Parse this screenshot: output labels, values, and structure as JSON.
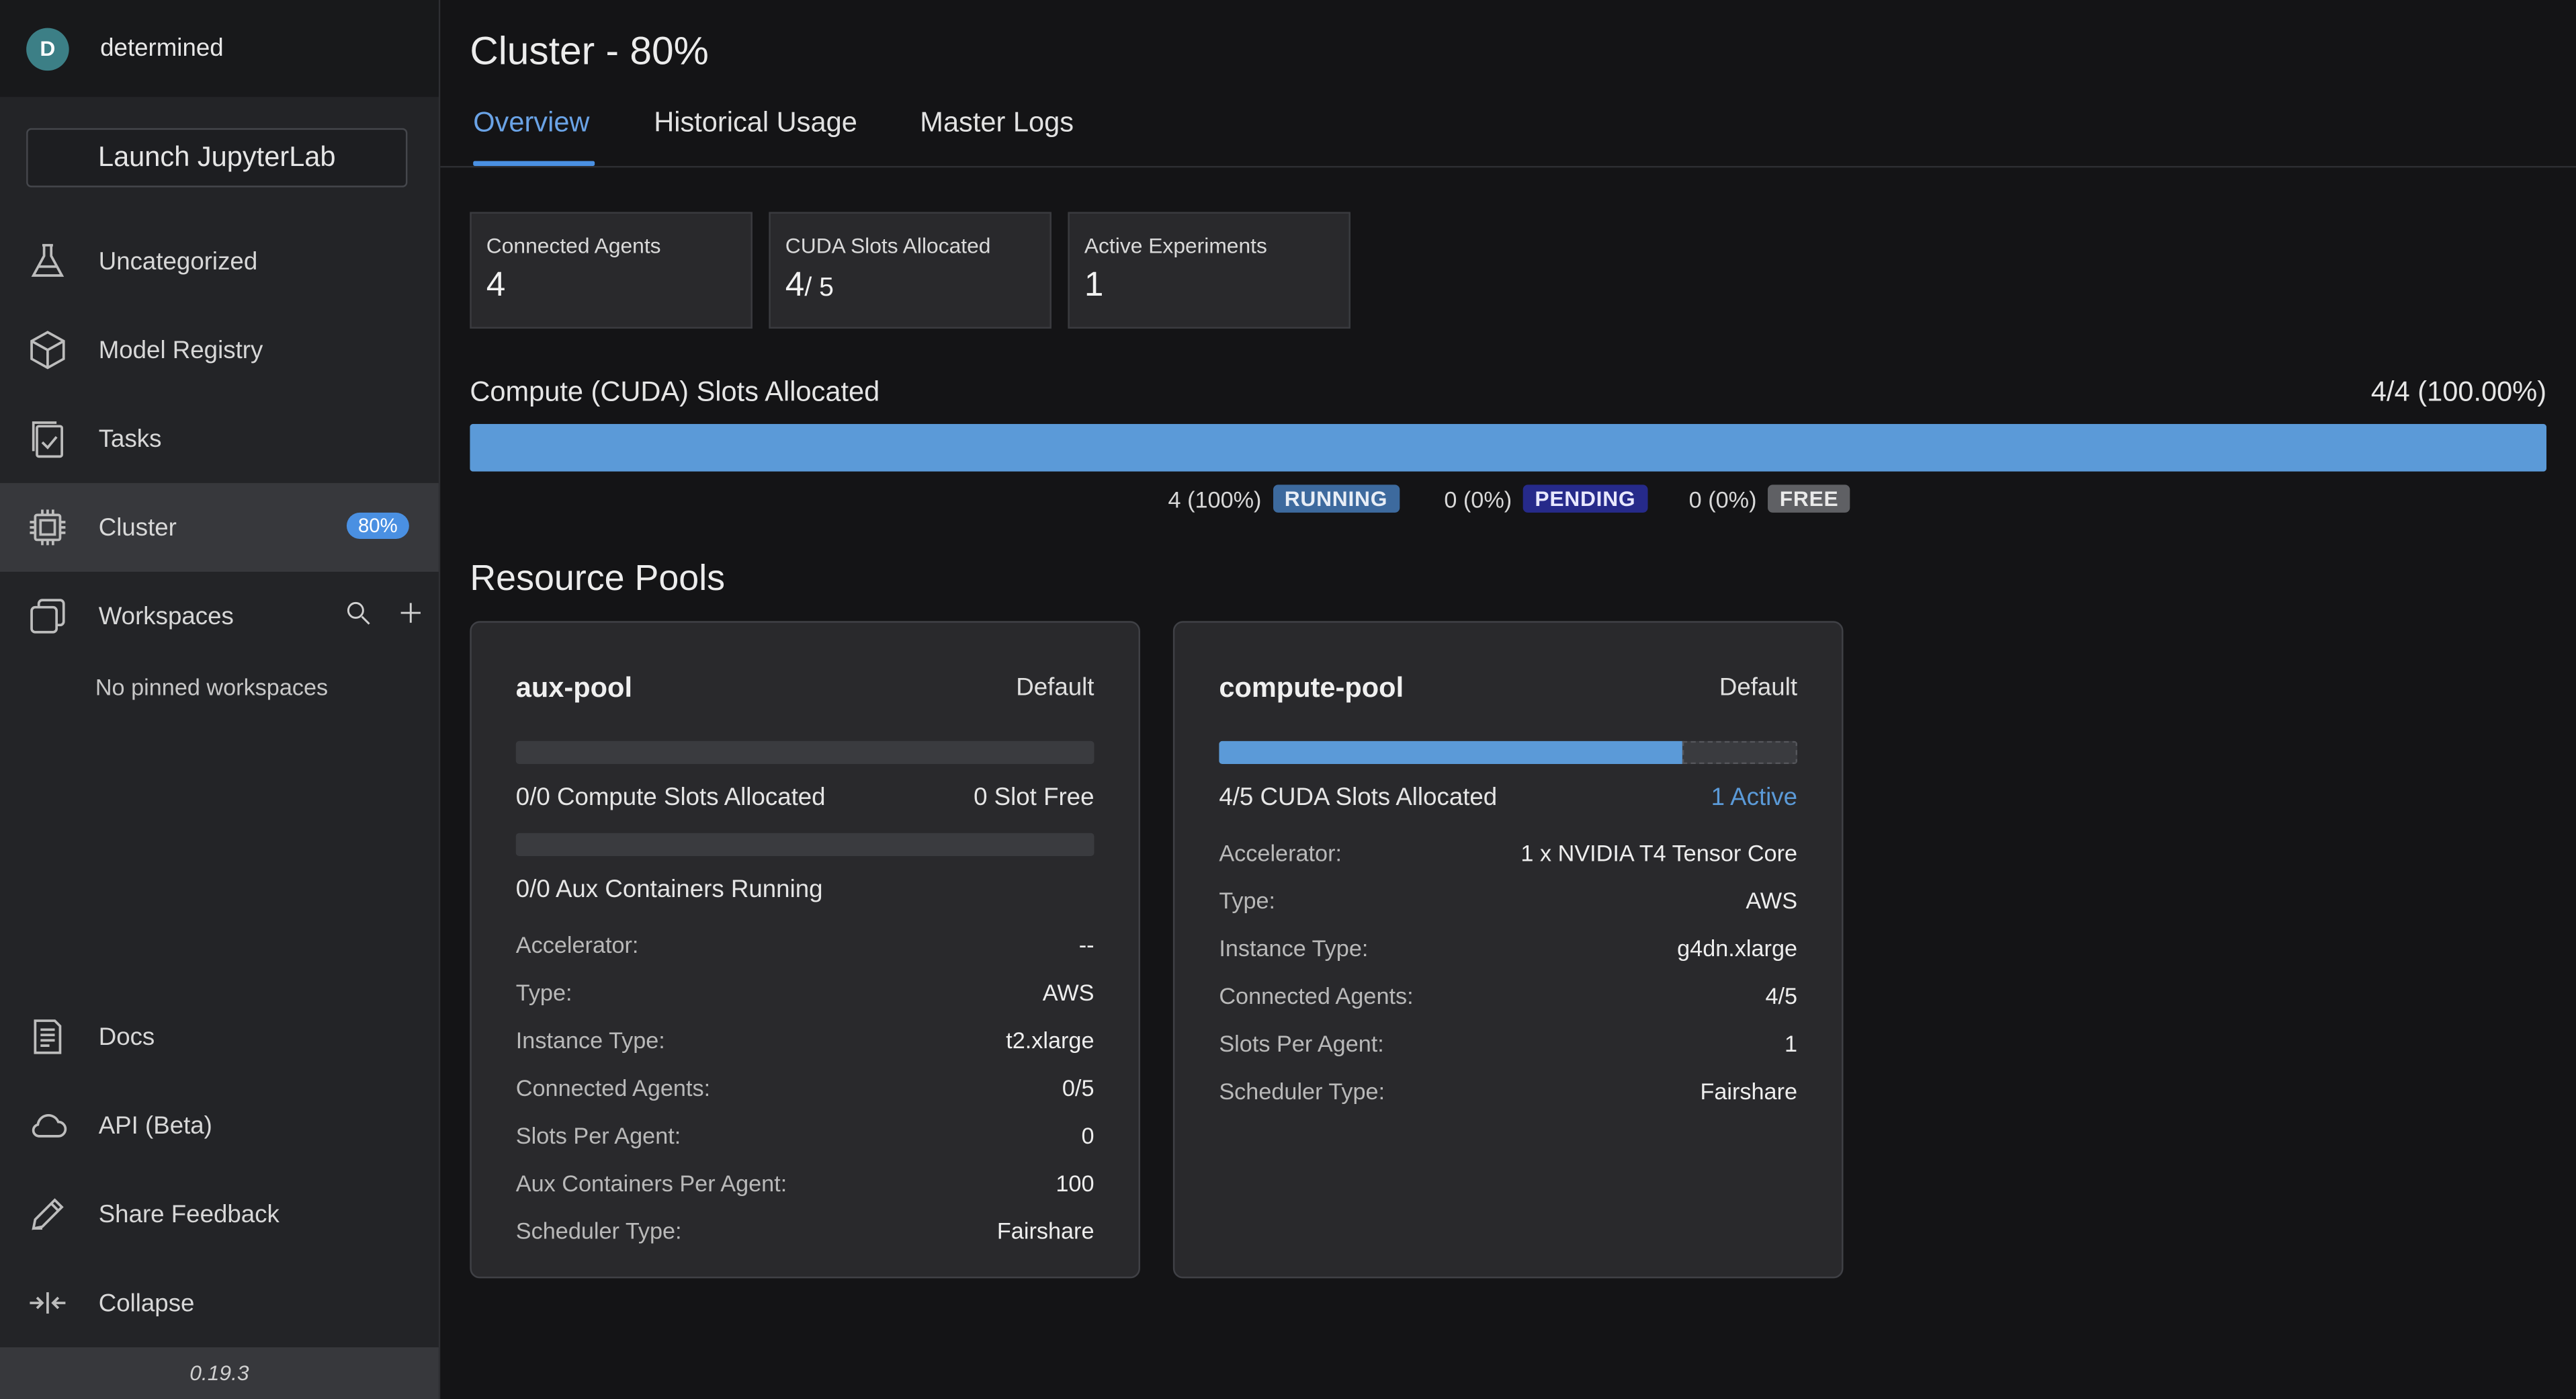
{
  "user": {
    "initial": "D",
    "name": "determined"
  },
  "sidebar": {
    "launch_label": "Launch JupyterLab",
    "items": [
      {
        "label": "Uncategorized",
        "icon": "flask-icon"
      },
      {
        "label": "Model Registry",
        "icon": "cube-icon"
      },
      {
        "label": "Tasks",
        "icon": "tasks-icon"
      },
      {
        "label": "Cluster",
        "icon": "chip-icon",
        "badge": "80%"
      },
      {
        "label": "Workspaces",
        "icon": "workspaces-icon"
      }
    ],
    "no_pinned": "No pinned workspaces",
    "bottom_items": [
      {
        "label": "Docs",
        "icon": "docs-icon"
      },
      {
        "label": "API (Beta)",
        "icon": "cloud-icon"
      },
      {
        "label": "Share Feedback",
        "icon": "pencil-icon"
      },
      {
        "label": "Collapse",
        "icon": "collapse-icon"
      }
    ],
    "version": "0.19.3"
  },
  "page": {
    "title": "Cluster - 80%",
    "tabs": [
      "Overview",
      "Historical Usage",
      "Master Logs"
    ],
    "active_tab": "Overview"
  },
  "cards": [
    {
      "label": "Connected Agents",
      "value": "4",
      "suffix": ""
    },
    {
      "label": "CUDA Slots Allocated",
      "value": "4",
      "suffix": "/ 5"
    },
    {
      "label": "Active Experiments",
      "value": "1",
      "suffix": ""
    }
  ],
  "allocation": {
    "title": "Compute (CUDA) Slots Allocated",
    "summary": "4/4 (100.00%)",
    "fill_fraction": 1.0,
    "legend": [
      {
        "count": "4 (100%)",
        "tag": "RUNNING"
      },
      {
        "count": "0 (0%)",
        "tag": "PENDING"
      },
      {
        "count": "0 (0%)",
        "tag": "FREE"
      }
    ]
  },
  "resource_pools_title": "Resource Pools",
  "pools": [
    {
      "name": "aux-pool",
      "default": "Default",
      "compute_fill": 0,
      "slots_label": "0/0 Compute Slots Allocated",
      "slots_right": "0 Slot Free",
      "aux_fill": 0,
      "aux_label": "0/0 Aux Containers Running",
      "rows": [
        {
          "k": "Accelerator:",
          "v": "--"
        },
        {
          "k": "Type:",
          "v": "AWS"
        },
        {
          "k": "Instance Type:",
          "v": "t2.xlarge"
        },
        {
          "k": "Connected Agents:",
          "v": "0/5"
        },
        {
          "k": "Slots Per Agent:",
          "v": "0"
        },
        {
          "k": "Aux Containers Per Agent:",
          "v": "100"
        },
        {
          "k": "Scheduler Type:",
          "v": "Fairshare"
        }
      ]
    },
    {
      "name": "compute-pool",
      "default": "Default",
      "compute_fill": 0.8,
      "slots_label": "4/5 CUDA Slots Allocated",
      "slots_right": "1 Active",
      "rows": [
        {
          "k": "Accelerator:",
          "v": "1 x NVIDIA T4 Tensor Core"
        },
        {
          "k": "Type:",
          "v": "AWS"
        },
        {
          "k": "Instance Type:",
          "v": "g4dn.xlarge"
        },
        {
          "k": "Connected Agents:",
          "v": "4/5"
        },
        {
          "k": "Slots Per Agent:",
          "v": "1"
        },
        {
          "k": "Scheduler Type:",
          "v": "Fairshare"
        }
      ]
    }
  ]
}
